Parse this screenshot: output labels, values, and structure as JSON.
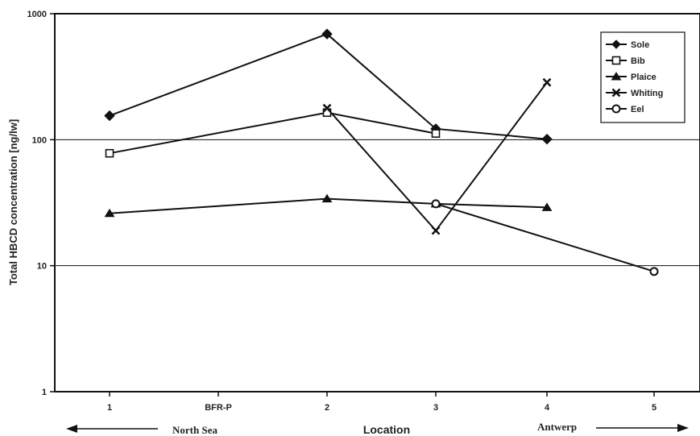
{
  "chart_data": {
    "type": "line",
    "ylabel": "Total HBCD concentration [ng/lw]",
    "xlabel": "Location",
    "yscale": "log",
    "ylim": [
      1,
      1000
    ],
    "y_ticks": [
      "1",
      "10",
      "100",
      "1000"
    ],
    "categories": [
      "1",
      "BFR-P",
      "2",
      "3",
      "4",
      "5"
    ],
    "grid": "horizontal major lines at 10 and 100",
    "legend_position": "top-right",
    "region_labels": {
      "left": "North Sea",
      "right": "Antwerp"
    },
    "series": [
      {
        "name": "Sole",
        "marker": "diamond",
        "points": [
          {
            "x": "1",
            "y": 155
          },
          {
            "x": "2",
            "y": 690
          },
          {
            "x": "3",
            "y": 122
          },
          {
            "x": "4",
            "y": 101
          }
        ]
      },
      {
        "name": "Bib",
        "marker": "square-open",
        "points": [
          {
            "x": "1",
            "y": 78
          },
          {
            "x": "2",
            "y": 164
          },
          {
            "x": "3",
            "y": 112
          }
        ]
      },
      {
        "name": "Plaice",
        "marker": "triangle",
        "points": [
          {
            "x": "1",
            "y": 26
          },
          {
            "x": "2",
            "y": 34
          },
          {
            "x": "3",
            "y": 31
          },
          {
            "x": "4",
            "y": 29
          }
        ]
      },
      {
        "name": "Whiting",
        "marker": "x",
        "points": [
          {
            "x": "2",
            "y": 178
          },
          {
            "x": "3",
            "y": 19
          },
          {
            "x": "4",
            "y": 285
          }
        ]
      },
      {
        "name": "Eel",
        "marker": "circle",
        "points": [
          {
            "x": "3",
            "y": 31
          },
          {
            "x": "5",
            "y": 9
          }
        ]
      }
    ]
  }
}
